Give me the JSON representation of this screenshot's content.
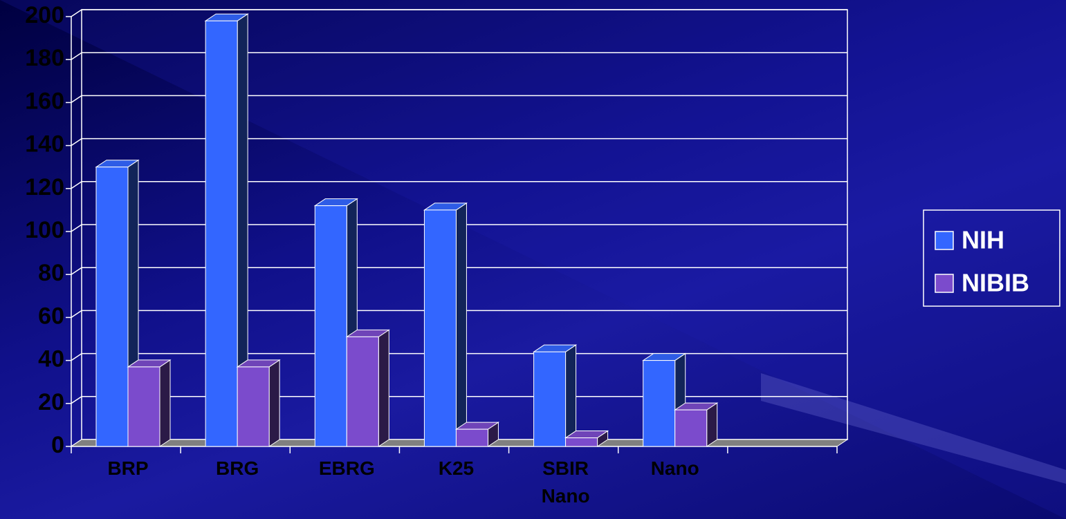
{
  "chart_data": {
    "type": "bar3d",
    "categories": [
      "BRP",
      "BRG",
      "EBRG",
      "K25",
      "SBIR Nano",
      "Nano",
      null
    ],
    "series": [
      {
        "name": "NIH",
        "color": "#3366ff",
        "values": [
          130,
          198,
          112,
          110,
          44,
          40,
          null
        ]
      },
      {
        "name": "NIBIB",
        "color": "#7b4bcc",
        "values": [
          37,
          37,
          51,
          8,
          4,
          17,
          null
        ]
      }
    ],
    "ylim": [
      0,
      200
    ],
    "yticks": [
      0,
      20,
      40,
      60,
      80,
      100,
      120,
      140,
      160,
      180,
      200
    ],
    "grid": true,
    "legend": "right"
  }
}
